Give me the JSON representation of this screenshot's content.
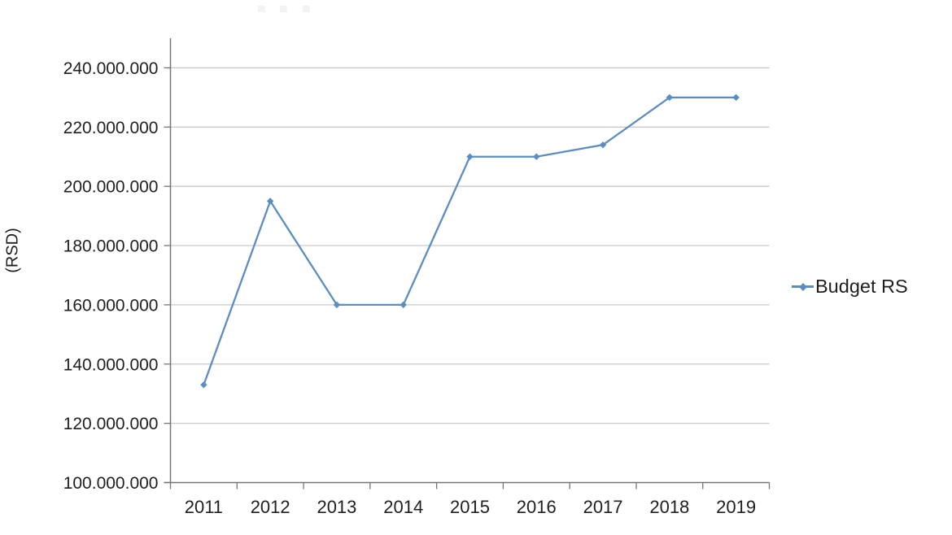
{
  "chart_data": {
    "type": "line",
    "title": "",
    "categories": [
      "2011",
      "2012",
      "2013",
      "2014",
      "2015",
      "2016",
      "2017",
      "2018",
      "2019"
    ],
    "series": [
      {
        "name": "Budget RS",
        "color": "#5b8dc4",
        "marker": "diamond",
        "values": [
          133000000,
          195000000,
          160000000,
          160000000,
          210000000,
          210000000,
          214000000,
          230000000,
          230000000
        ]
      }
    ],
    "xlabel": "",
    "ylabel": "(RSD)",
    "ylim": [
      100000000,
      250000000
    ],
    "yticks": [
      100000000,
      120000000,
      140000000,
      160000000,
      180000000,
      200000000,
      220000000,
      240000000
    ],
    "ytick_labels": [
      "100.000.000",
      "120.000.000",
      "140.000.000",
      "160.000.000",
      "180.000.000",
      "200.000.000",
      "220.000.000",
      "240.000.000"
    ],
    "grid": true,
    "legend_position": "right"
  },
  "colors": {
    "background": "#ffffff",
    "series_line": "#5b8dc4",
    "gridline": "#c9c9c9",
    "axis": "#747474",
    "label_text": "#1f1f1f"
  }
}
